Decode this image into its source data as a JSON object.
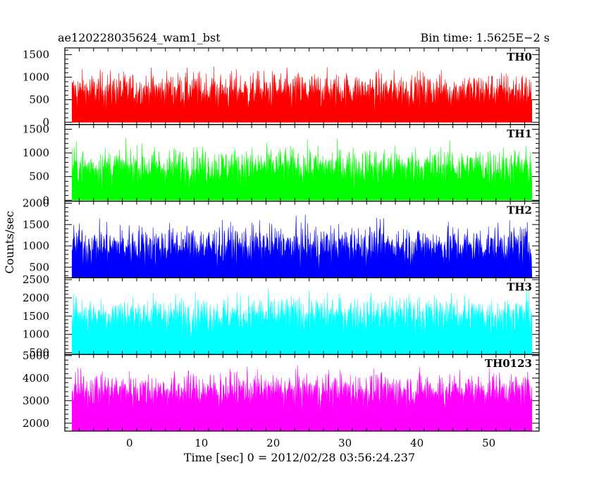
{
  "header": {
    "left_title": "ae120228035624_wam1_bst",
    "right_title": "Bin time: 1.5625E−2 s"
  },
  "chart_data": {
    "type": "line",
    "title": "ae120228035624_wam1_bst",
    "subtitle": "Bin time: 1.5625E−2 s",
    "xlabel": "Time [sec] 0 = 2012/02/28 03:56:24.237",
    "ylabel": "Counts/sec",
    "xlim": [
      -9,
      57
    ],
    "x_data_range": [
      -8,
      56
    ],
    "x_ticks": [
      0,
      10,
      20,
      30,
      40,
      50
    ],
    "grid": false,
    "legend": "none",
    "panels": [
      {
        "name": "TH0",
        "color": "#ff0000",
        "ylim": [
          -50,
          1650
        ],
        "y_ticks": [
          0,
          500,
          1000,
          1500
        ],
        "baseline": 0,
        "mean": 650,
        "spread": 330,
        "min_display": 80,
        "max_display": 1650
      },
      {
        "name": "TH1",
        "color": "#00ff00",
        "ylim": [
          -20,
          1600
        ],
        "y_ticks": [
          0,
          500,
          1000,
          1500
        ],
        "baseline": 0,
        "mean": 650,
        "spread": 330,
        "min_display": 70,
        "max_display": 1600
      },
      {
        "name": "TH2",
        "color": "#0000ff",
        "ylim": [
          250,
          2050
        ],
        "y_ticks": [
          500,
          1000,
          1500,
          2000
        ],
        "baseline": 250,
        "mean": 950,
        "spread": 380,
        "min_display": 290,
        "max_display": 2000
      },
      {
        "name": "TH3",
        "color": "#00ffff",
        "ylim": [
          450,
          2550
        ],
        "y_ticks": [
          500,
          1000,
          1500,
          2000,
          2500
        ],
        "baseline": 450,
        "mean": 1450,
        "spread": 430,
        "min_display": 480,
        "max_display": 2550
      },
      {
        "name": "TH0123",
        "color": "#ff00ff",
        "ylim": [
          1650,
          5050
        ],
        "y_ticks": [
          2000,
          3000,
          4000,
          5000
        ],
        "baseline": 1650,
        "mean": 3350,
        "spread": 650,
        "min_display": 1700,
        "max_display": 5050
      }
    ]
  }
}
